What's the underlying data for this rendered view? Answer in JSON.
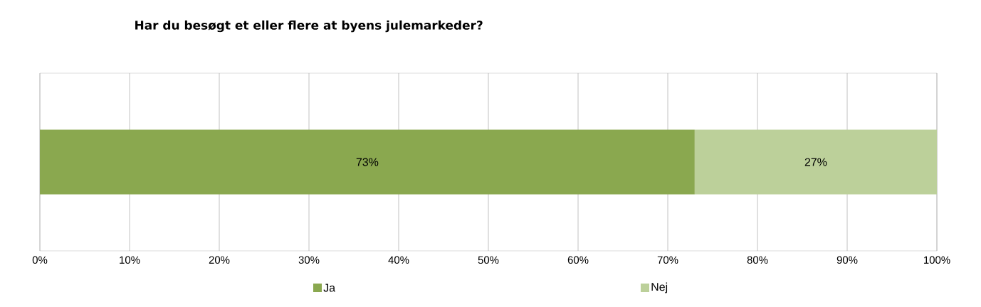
{
  "chart_data": {
    "type": "bar",
    "orientation": "horizontal",
    "stacked": true,
    "title": "Har du besøgt et eller flere at byens julemarkeder?",
    "categories": [
      null
    ],
    "series": [
      {
        "name": "Ja",
        "color": "#8aa84f",
        "values": [
          73
        ],
        "value_labels": [
          "73%"
        ]
      },
      {
        "name": "Nej",
        "color": "#bcd09a",
        "values": [
          27
        ],
        "value_labels": [
          "27%"
        ]
      }
    ],
    "xlim": [
      0,
      100
    ],
    "xticks": [
      {
        "value": 0,
        "label": "0%"
      },
      {
        "value": 10,
        "label": "10%"
      },
      {
        "value": 20,
        "label": "20%"
      },
      {
        "value": 30,
        "label": "30%"
      },
      {
        "value": 40,
        "label": "40%"
      },
      {
        "value": 50,
        "label": "50%"
      },
      {
        "value": 60,
        "label": "60%"
      },
      {
        "value": 70,
        "label": "70%"
      },
      {
        "value": 80,
        "label": "80%"
      },
      {
        "value": 90,
        "label": "90%"
      },
      {
        "value": 100,
        "label": "100%"
      }
    ],
    "grid": "x",
    "legend": "bottom"
  }
}
